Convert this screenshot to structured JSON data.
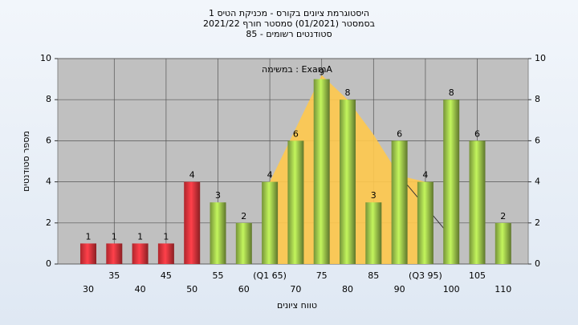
{
  "chart_data": {
    "type": "bar",
    "title": [
      "היסטוגרמת ציונים בקורס - מכניקת הטיס 1",
      "בסמסטר (01/2021) סמסטר חורף 2021/22",
      "סטודנטים רשומים - 85"
    ],
    "annotation": "במשימה : ExamA",
    "x_label": "טווח ציונים",
    "y_label": "מספר סטודנטים",
    "categories": [
      "30",
      "35",
      "40",
      "45",
      "50",
      "55",
      "60",
      "(Q1 65)",
      "70",
      "75",
      "80",
      "85",
      "90",
      "(Q3 95)",
      "100",
      "105",
      "110"
    ],
    "values": [
      1,
      1,
      1,
      1,
      4,
      3,
      2,
      4,
      6,
      9,
      8,
      3,
      6,
      4,
      8,
      6,
      2
    ],
    "colors": [
      "#e8333b",
      "#e8333b",
      "#e8333b",
      "#e8333b",
      "#e8333b",
      "#9cc44a",
      "#9cc44a",
      "#9cc44a",
      "#9cc44a",
      "#9cc44a",
      "#9cc44a",
      "#9cc44a",
      "#9cc44a",
      "#9cc44a",
      "#9cc44a",
      "#9cc44a",
      "#9cc44a"
    ],
    "distribution": {
      "color": "#ffc94d",
      "x": [
        65,
        75,
        80,
        85,
        90,
        95
      ],
      "values": [
        4,
        9.2,
        8,
        6.3,
        4.3,
        4
      ]
    },
    "tail": {
      "color": "#333333",
      "x": [
        90,
        100
      ],
      "values": [
        4.3,
        1.3
      ]
    },
    "ylim": [
      0,
      10
    ],
    "yticks": [
      0,
      2,
      4,
      6,
      8,
      10
    ],
    "grid": true
  }
}
